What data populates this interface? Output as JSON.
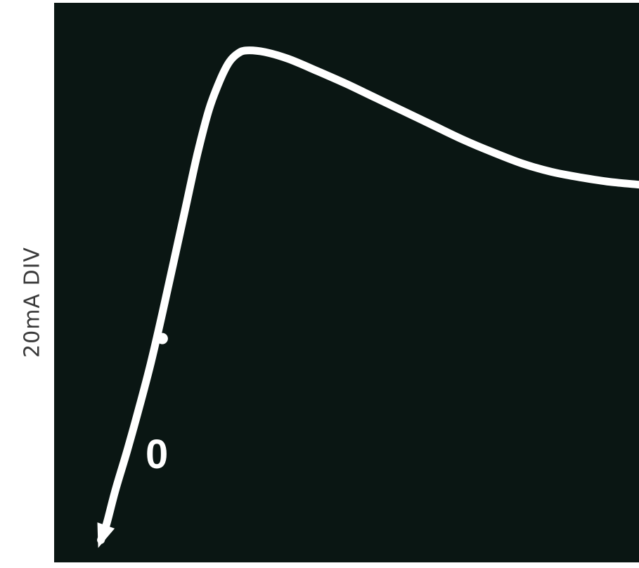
{
  "chart_data": {
    "type": "line",
    "title": "",
    "ylabel": "20mA DIV",
    "xlabel": "",
    "annotations": [
      "0"
    ],
    "grid": false,
    "background_color": "#0a1613",
    "trace_color": "#ffffff",
    "xlim": [
      0,
      10
    ],
    "ylim": [
      0,
      10
    ],
    "series": [
      {
        "points": [
          [
            0.8,
            0.4
          ],
          [
            0.9,
            0.7
          ],
          [
            1.05,
            1.3
          ],
          [
            1.25,
            2.0
          ],
          [
            1.45,
            2.75
          ],
          [
            1.65,
            3.55
          ],
          [
            1.85,
            4.45
          ],
          [
            2.05,
            5.4
          ],
          [
            2.25,
            6.35
          ],
          [
            2.45,
            7.3
          ],
          [
            2.65,
            8.1
          ],
          [
            2.85,
            8.65
          ],
          [
            3.0,
            8.95
          ],
          [
            3.15,
            9.1
          ],
          [
            3.3,
            9.15
          ],
          [
            3.6,
            9.12
          ],
          [
            4.0,
            9.0
          ],
          [
            4.5,
            8.78
          ],
          [
            5.0,
            8.55
          ],
          [
            5.5,
            8.3
          ],
          [
            6.0,
            8.05
          ],
          [
            6.5,
            7.8
          ],
          [
            7.0,
            7.55
          ],
          [
            7.5,
            7.33
          ],
          [
            8.0,
            7.13
          ],
          [
            8.5,
            6.98
          ],
          [
            9.0,
            6.88
          ],
          [
            9.5,
            6.8
          ],
          [
            10.0,
            6.75
          ]
        ]
      }
    ]
  }
}
